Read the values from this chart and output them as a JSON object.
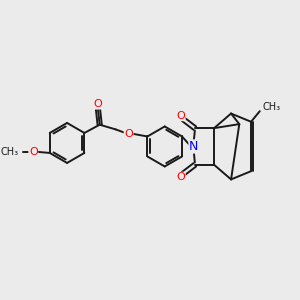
{
  "background_color": "#ebebeb",
  "bond_color": "#1a1a1a",
  "bond_width": 1.4,
  "atom_colors": {
    "O": "#ff0000",
    "N": "#0000ff",
    "C": "#1a1a1a"
  },
  "figsize": [
    3.0,
    3.0
  ],
  "dpi": 100,
  "xlim": [
    0,
    12
  ],
  "ylim": [
    0,
    10
  ]
}
